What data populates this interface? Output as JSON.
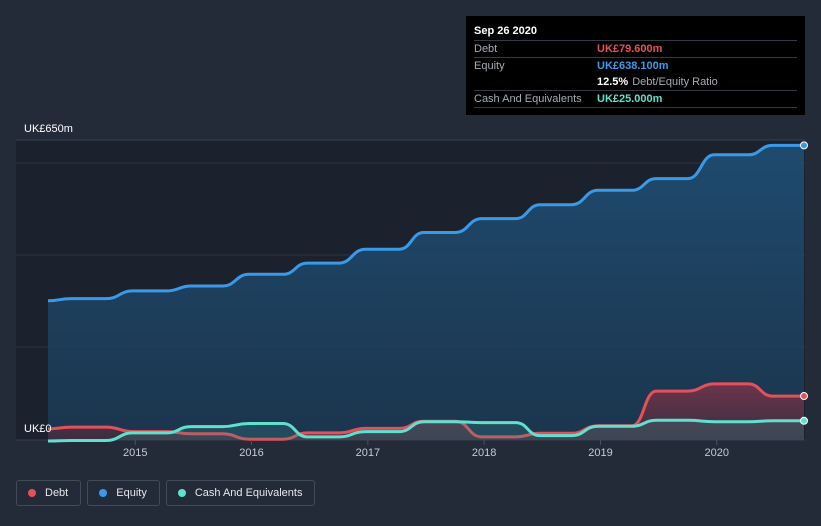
{
  "chart_data": {
    "type": "area",
    "title": "",
    "xlabel": "",
    "ylabel": "",
    "y_axis_labels": {
      "top": "UK£650m",
      "bottom": "UK£0"
    },
    "x_tick_labels": [
      "2015",
      "2016",
      "2017",
      "2018",
      "2019",
      "2020"
    ],
    "x_range": [
      2014.25,
      2020.75
    ],
    "ylim": [
      0,
      650
    ],
    "series": [
      {
        "name": "Equity",
        "color": "#3b9ae8",
        "x": [
          2014.25,
          2014.45,
          2014.75,
          2014.98,
          2015.27,
          2015.48,
          2015.75,
          2015.98,
          2016.27,
          2016.48,
          2016.75,
          2016.98,
          2017.27,
          2017.48,
          2017.75,
          2017.98,
          2018.27,
          2018.48,
          2018.75,
          2018.98,
          2019.27,
          2019.48,
          2019.75,
          2019.98,
          2020.27,
          2020.48,
          2020.75
        ],
        "values": [
          292,
          297,
          297,
          314,
          314,
          325,
          325,
          351,
          351,
          376,
          376,
          407,
          407,
          444,
          444,
          475,
          475,
          506,
          506,
          538,
          538,
          564,
          564,
          617,
          617,
          638,
          638
        ]
      },
      {
        "name": "Debt",
        "color": "#e5505a",
        "x": [
          2014.25,
          2014.45,
          2014.75,
          2014.98,
          2015.27,
          2015.48,
          2015.75,
          2015.98,
          2016.27,
          2016.48,
          2016.75,
          2016.98,
          2017.27,
          2017.48,
          2017.75,
          2017.98,
          2018.27,
          2018.48,
          2018.75,
          2018.98,
          2019.27,
          2019.48,
          2019.75,
          2019.98,
          2020.27,
          2020.48,
          2020.75
        ],
        "values": [
          7,
          11,
          11,
          1,
          1,
          -4,
          -4,
          -16,
          -16,
          -2,
          -2,
          8,
          8,
          24,
          24,
          -11,
          -11,
          -3,
          -3,
          14,
          14,
          91,
          91,
          107,
          107,
          80,
          80
        ]
      },
      {
        "name": "Cash And Equivalents",
        "color": "#5fe1d0",
        "x": [
          2014.25,
          2014.45,
          2014.75,
          2014.98,
          2015.27,
          2015.48,
          2015.75,
          2015.98,
          2016.27,
          2016.48,
          2016.75,
          2016.98,
          2017.27,
          2017.48,
          2017.75,
          2017.98,
          2018.27,
          2018.48,
          2018.75,
          2018.98,
          2019.27,
          2019.48,
          2019.75,
          2019.98,
          2020.27,
          2020.48,
          2020.75
        ],
        "values": [
          -20,
          -19,
          -19,
          -2,
          -2,
          12,
          12,
          19,
          19,
          -11,
          -11,
          1,
          1,
          23,
          23,
          21,
          21,
          -8,
          -8,
          13,
          13,
          26,
          26,
          23,
          23,
          25,
          25
        ]
      }
    ]
  },
  "tooltip": {
    "date": "Sep 26 2020",
    "debt_label": "Debt",
    "debt_value": "UK£79.600m",
    "equity_label": "Equity",
    "equity_value": "UK£638.100m",
    "ratio_value": "12.5%",
    "ratio_label": "Debt/Equity Ratio",
    "cash_label": "Cash And Equivalents",
    "cash_value": "UK£25.000m"
  },
  "legend": {
    "debt": "Debt",
    "equity": "Equity",
    "cash": "Cash And Equivalents"
  },
  "colors": {
    "debt": "#e5505a",
    "equity": "#3b9ae8",
    "cash": "#5fe1d0"
  }
}
